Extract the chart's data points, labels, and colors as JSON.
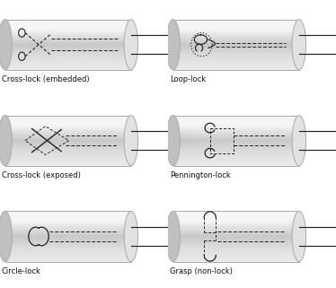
{
  "panels": [
    {
      "label": "Cross-lock (embedded)",
      "row": 0,
      "col": 0
    },
    {
      "label": "Loop-lock",
      "row": 0,
      "col": 1
    },
    {
      "label": "Cross-lock (exposed)",
      "row": 1,
      "col": 0
    },
    {
      "label": "Pennington-lock",
      "row": 1,
      "col": 1
    },
    {
      "label": "Circle-lock",
      "row": 2,
      "col": 0
    },
    {
      "label": "Grasp (non-lock)",
      "row": 2,
      "col": 1
    }
  ],
  "bg_color": "#ffffff",
  "edge_color": "#aaaaaa",
  "suture_color": "#222222",
  "label_fontsize": 6.0
}
